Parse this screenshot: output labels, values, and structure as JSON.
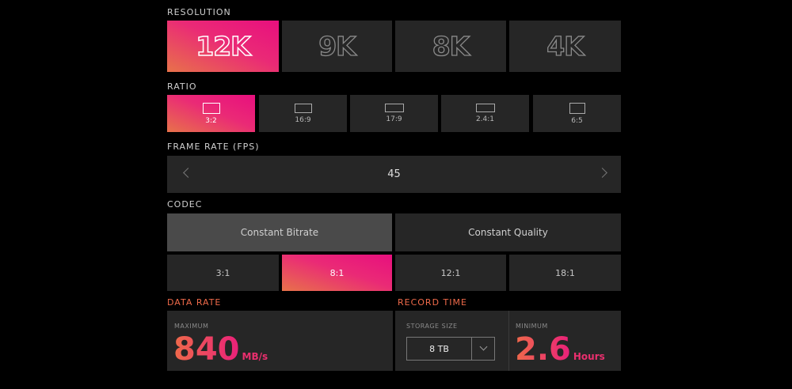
{
  "resolution": {
    "label": "RESOLUTION",
    "options": [
      "12K",
      "9K",
      "8K",
      "4K"
    ],
    "selected": 0
  },
  "ratio": {
    "label": "RATIO",
    "options": [
      "3:2",
      "16:9",
      "17:9",
      "2.4:1",
      "6:5"
    ],
    "selected": 0
  },
  "frame_rate": {
    "label": "FRAME RATE (FPS)",
    "value": "45"
  },
  "codec": {
    "label": "CODEC",
    "modes": [
      "Constant Bitrate",
      "Constant Quality"
    ],
    "selected_mode": 0,
    "options": [
      "3:1",
      "8:1",
      "12:1",
      "18:1"
    ],
    "selected": 1
  },
  "data_rate": {
    "label": "DATA RATE",
    "caption": "MAXIMUM",
    "value": "840",
    "unit": "MB/s"
  },
  "record_time": {
    "label": "RECORD TIME",
    "storage_caption": "STORAGE SIZE",
    "storage": "8 TB",
    "caption": "MINIMUM",
    "value": "2.6",
    "unit": "Hours"
  }
}
